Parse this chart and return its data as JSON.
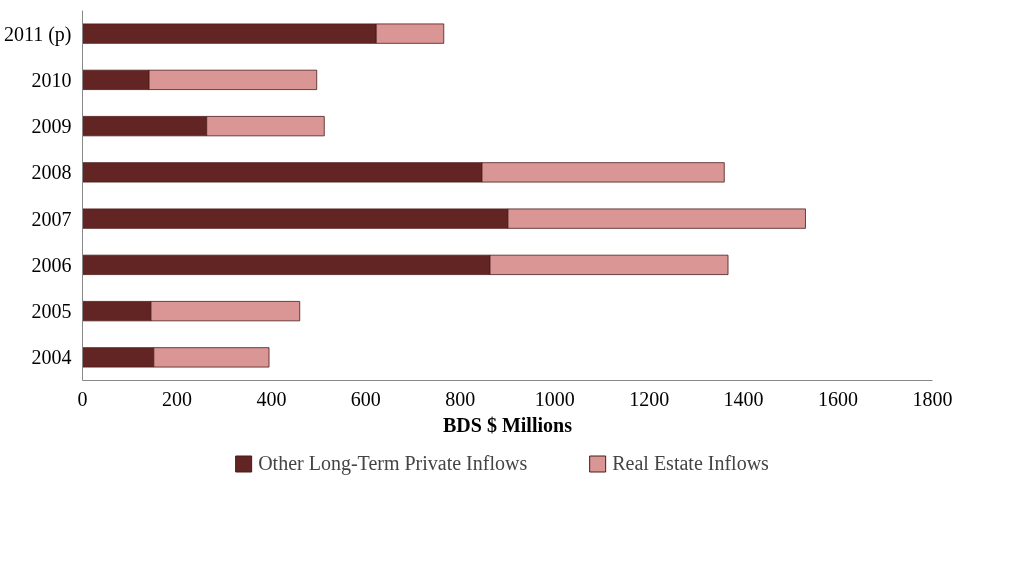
{
  "chart_data": {
    "type": "bar",
    "orientation": "horizontal",
    "stacked": true,
    "xlabel": "BDS $ Millions",
    "categories": [
      "2011 (p)",
      "2010",
      "2009",
      "2008",
      "2007",
      "2006",
      "2005",
      "2004"
    ],
    "series": [
      {
        "name": "Other Long-Term Private Inflows",
        "color": "#632523",
        "values": [
          622,
          141,
          263,
          846,
          901,
          863,
          145,
          151
        ]
      },
      {
        "name": "Real Estate Inflows",
        "color": "#d99694",
        "values": [
          143,
          355,
          249,
          513,
          630,
          504,
          315,
          244
        ]
      }
    ],
    "xlim": [
      0,
      1800
    ],
    "xticks": [
      0,
      200,
      400,
      600,
      800,
      1000,
      1200,
      1400,
      1600,
      1800
    ],
    "grid": false,
    "legend": "bottom"
  }
}
